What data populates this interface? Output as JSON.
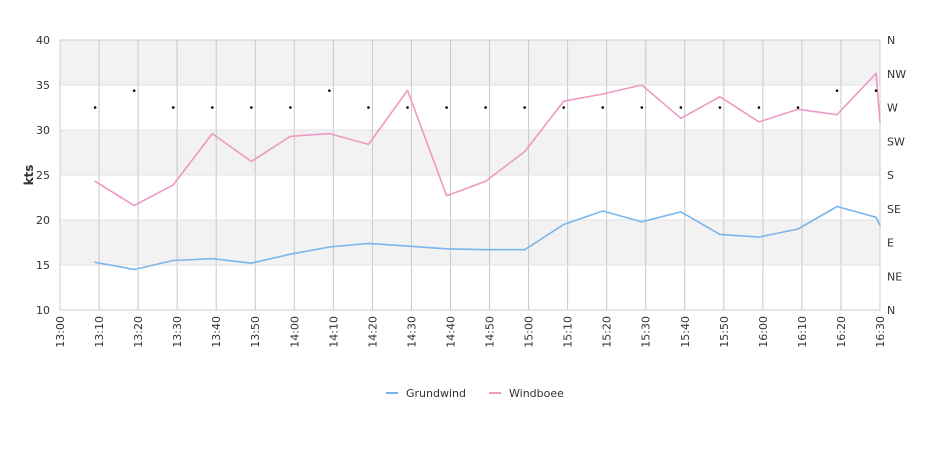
{
  "chart_data": {
    "type": "line",
    "title": "",
    "xlabel": "",
    "ylabel": "kts",
    "ylim": [
      10,
      40
    ],
    "y_ticks": [
      "10",
      "15",
      "20",
      "25",
      "30",
      "35",
      "40"
    ],
    "right_axis_ticks": [
      "N",
      "NE",
      "E",
      "SE",
      "S",
      "SW",
      "W",
      "NW",
      "N"
    ],
    "x_ticks": [
      "13:00",
      "13:10",
      "13:20",
      "13:30",
      "13:40",
      "13:50",
      "14:00",
      "14:10",
      "14:20",
      "14:30",
      "14:40",
      "14:50",
      "15:00",
      "15:10",
      "15:20",
      "15:30",
      "15:40",
      "15:50",
      "16:00",
      "16:10",
      "16:20",
      "16:30"
    ],
    "x": [
      "13:09",
      "13:19",
      "13:29",
      "13:39",
      "13:49",
      "13:59",
      "14:09",
      "14:19",
      "14:29",
      "14:39",
      "14:49",
      "14:59",
      "15:09",
      "15:19",
      "15:29",
      "15:39",
      "15:49",
      "15:59",
      "16:09",
      "16:19",
      "16:29",
      "16:30"
    ],
    "series": [
      {
        "name": "Grundwind",
        "color": "#7cb5ec",
        "values": [
          15.3,
          14.5,
          15.5,
          15.7,
          15.2,
          16.2,
          17.0,
          17.4,
          17.1,
          16.8,
          16.7,
          16.7,
          19.5,
          21.0,
          19.8,
          20.9,
          18.4,
          18.1,
          19.0,
          21.5,
          20.3,
          19.4
        ]
      },
      {
        "name": "Windboee",
        "color": "#ee99c3",
        "values": [
          24.3,
          21.6,
          23.9,
          29.6,
          26.5,
          29.3,
          29.6,
          28.4,
          34.4,
          22.7,
          24.3,
          27.6,
          33.2,
          34.0,
          35.0,
          31.3,
          33.7,
          30.9,
          32.3,
          31.7,
          36.3,
          30.9
        ]
      }
    ],
    "direction_markers": [
      {
        "x": "13:09",
        "dir": "W"
      },
      {
        "x": "13:19",
        "dir": "WNW"
      },
      {
        "x": "13:29",
        "dir": "W"
      },
      {
        "x": "13:39",
        "dir": "W"
      },
      {
        "x": "13:49",
        "dir": "W"
      },
      {
        "x": "13:59",
        "dir": "W"
      },
      {
        "x": "14:09",
        "dir": "WNW"
      },
      {
        "x": "14:19",
        "dir": "W"
      },
      {
        "x": "14:29",
        "dir": "W"
      },
      {
        "x": "14:39",
        "dir": "W"
      },
      {
        "x": "14:49",
        "dir": "W"
      },
      {
        "x": "14:59",
        "dir": "W"
      },
      {
        "x": "15:09",
        "dir": "W"
      },
      {
        "x": "15:19",
        "dir": "W"
      },
      {
        "x": "15:29",
        "dir": "W"
      },
      {
        "x": "15:39",
        "dir": "W"
      },
      {
        "x": "15:49",
        "dir": "W"
      },
      {
        "x": "15:59",
        "dir": "W"
      },
      {
        "x": "16:09",
        "dir": "W"
      },
      {
        "x": "16:19",
        "dir": "WNW"
      },
      {
        "x": "16:29",
        "dir": "WNW"
      }
    ],
    "grid": true,
    "legend_position": "bottom-center"
  }
}
